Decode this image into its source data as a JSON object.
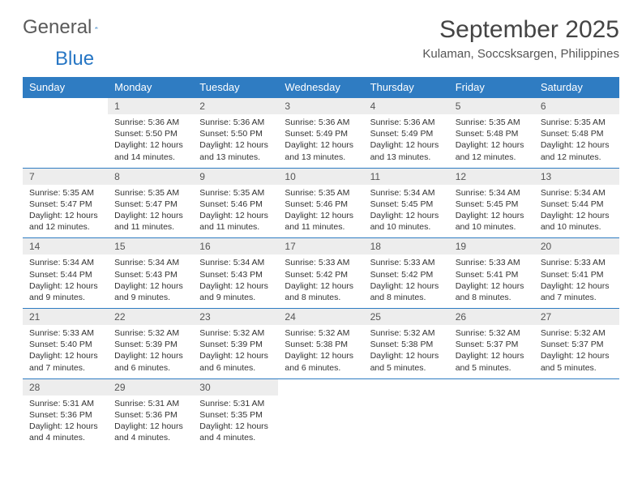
{
  "logo": {
    "word1": "General",
    "word2": "Blue"
  },
  "header": {
    "title": "September 2025",
    "location": "Kulaman, Soccsksargen, Philippines"
  },
  "colors": {
    "accent": "#2f7cc2",
    "header_bg": "#2776c4",
    "daynum_bg": "#ededed",
    "text": "#333333",
    "bg": "#ffffff"
  },
  "calendar": {
    "type": "table",
    "columns": [
      "Sunday",
      "Monday",
      "Tuesday",
      "Wednesday",
      "Thursday",
      "Friday",
      "Saturday"
    ],
    "col_width_pct": 14.28,
    "fonts": {
      "header_pt": 13,
      "daynum_pt": 12,
      "info_pt": 10.5,
      "title_pt": 30,
      "location_pt": 15
    },
    "weeks": [
      [
        {
          "empty": true
        },
        {
          "n": "1",
          "sr": "Sunrise: 5:36 AM",
          "ss": "Sunset: 5:50 PM",
          "dl": "Daylight: 12 hours and 14 minutes."
        },
        {
          "n": "2",
          "sr": "Sunrise: 5:36 AM",
          "ss": "Sunset: 5:50 PM",
          "dl": "Daylight: 12 hours and 13 minutes."
        },
        {
          "n": "3",
          "sr": "Sunrise: 5:36 AM",
          "ss": "Sunset: 5:49 PM",
          "dl": "Daylight: 12 hours and 13 minutes."
        },
        {
          "n": "4",
          "sr": "Sunrise: 5:36 AM",
          "ss": "Sunset: 5:49 PM",
          "dl": "Daylight: 12 hours and 13 minutes."
        },
        {
          "n": "5",
          "sr": "Sunrise: 5:35 AM",
          "ss": "Sunset: 5:48 PM",
          "dl": "Daylight: 12 hours and 12 minutes."
        },
        {
          "n": "6",
          "sr": "Sunrise: 5:35 AM",
          "ss": "Sunset: 5:48 PM",
          "dl": "Daylight: 12 hours and 12 minutes."
        }
      ],
      [
        {
          "n": "7",
          "sr": "Sunrise: 5:35 AM",
          "ss": "Sunset: 5:47 PM",
          "dl": "Daylight: 12 hours and 12 minutes."
        },
        {
          "n": "8",
          "sr": "Sunrise: 5:35 AM",
          "ss": "Sunset: 5:47 PM",
          "dl": "Daylight: 12 hours and 11 minutes."
        },
        {
          "n": "9",
          "sr": "Sunrise: 5:35 AM",
          "ss": "Sunset: 5:46 PM",
          "dl": "Daylight: 12 hours and 11 minutes."
        },
        {
          "n": "10",
          "sr": "Sunrise: 5:35 AM",
          "ss": "Sunset: 5:46 PM",
          "dl": "Daylight: 12 hours and 11 minutes."
        },
        {
          "n": "11",
          "sr": "Sunrise: 5:34 AM",
          "ss": "Sunset: 5:45 PM",
          "dl": "Daylight: 12 hours and 10 minutes."
        },
        {
          "n": "12",
          "sr": "Sunrise: 5:34 AM",
          "ss": "Sunset: 5:45 PM",
          "dl": "Daylight: 12 hours and 10 minutes."
        },
        {
          "n": "13",
          "sr": "Sunrise: 5:34 AM",
          "ss": "Sunset: 5:44 PM",
          "dl": "Daylight: 12 hours and 10 minutes."
        }
      ],
      [
        {
          "n": "14",
          "sr": "Sunrise: 5:34 AM",
          "ss": "Sunset: 5:44 PM",
          "dl": "Daylight: 12 hours and 9 minutes."
        },
        {
          "n": "15",
          "sr": "Sunrise: 5:34 AM",
          "ss": "Sunset: 5:43 PM",
          "dl": "Daylight: 12 hours and 9 minutes."
        },
        {
          "n": "16",
          "sr": "Sunrise: 5:34 AM",
          "ss": "Sunset: 5:43 PM",
          "dl": "Daylight: 12 hours and 9 minutes."
        },
        {
          "n": "17",
          "sr": "Sunrise: 5:33 AM",
          "ss": "Sunset: 5:42 PM",
          "dl": "Daylight: 12 hours and 8 minutes."
        },
        {
          "n": "18",
          "sr": "Sunrise: 5:33 AM",
          "ss": "Sunset: 5:42 PM",
          "dl": "Daylight: 12 hours and 8 minutes."
        },
        {
          "n": "19",
          "sr": "Sunrise: 5:33 AM",
          "ss": "Sunset: 5:41 PM",
          "dl": "Daylight: 12 hours and 8 minutes."
        },
        {
          "n": "20",
          "sr": "Sunrise: 5:33 AM",
          "ss": "Sunset: 5:41 PM",
          "dl": "Daylight: 12 hours and 7 minutes."
        }
      ],
      [
        {
          "n": "21",
          "sr": "Sunrise: 5:33 AM",
          "ss": "Sunset: 5:40 PM",
          "dl": "Daylight: 12 hours and 7 minutes."
        },
        {
          "n": "22",
          "sr": "Sunrise: 5:32 AM",
          "ss": "Sunset: 5:39 PM",
          "dl": "Daylight: 12 hours and 6 minutes."
        },
        {
          "n": "23",
          "sr": "Sunrise: 5:32 AM",
          "ss": "Sunset: 5:39 PM",
          "dl": "Daylight: 12 hours and 6 minutes."
        },
        {
          "n": "24",
          "sr": "Sunrise: 5:32 AM",
          "ss": "Sunset: 5:38 PM",
          "dl": "Daylight: 12 hours and 6 minutes."
        },
        {
          "n": "25",
          "sr": "Sunrise: 5:32 AM",
          "ss": "Sunset: 5:38 PM",
          "dl": "Daylight: 12 hours and 5 minutes."
        },
        {
          "n": "26",
          "sr": "Sunrise: 5:32 AM",
          "ss": "Sunset: 5:37 PM",
          "dl": "Daylight: 12 hours and 5 minutes."
        },
        {
          "n": "27",
          "sr": "Sunrise: 5:32 AM",
          "ss": "Sunset: 5:37 PM",
          "dl": "Daylight: 12 hours and 5 minutes."
        }
      ],
      [
        {
          "n": "28",
          "sr": "Sunrise: 5:31 AM",
          "ss": "Sunset: 5:36 PM",
          "dl": "Daylight: 12 hours and 4 minutes."
        },
        {
          "n": "29",
          "sr": "Sunrise: 5:31 AM",
          "ss": "Sunset: 5:36 PM",
          "dl": "Daylight: 12 hours and 4 minutes."
        },
        {
          "n": "30",
          "sr": "Sunrise: 5:31 AM",
          "ss": "Sunset: 5:35 PM",
          "dl": "Daylight: 12 hours and 4 minutes."
        },
        {
          "empty": true
        },
        {
          "empty": true
        },
        {
          "empty": true
        },
        {
          "empty": true
        }
      ]
    ]
  }
}
